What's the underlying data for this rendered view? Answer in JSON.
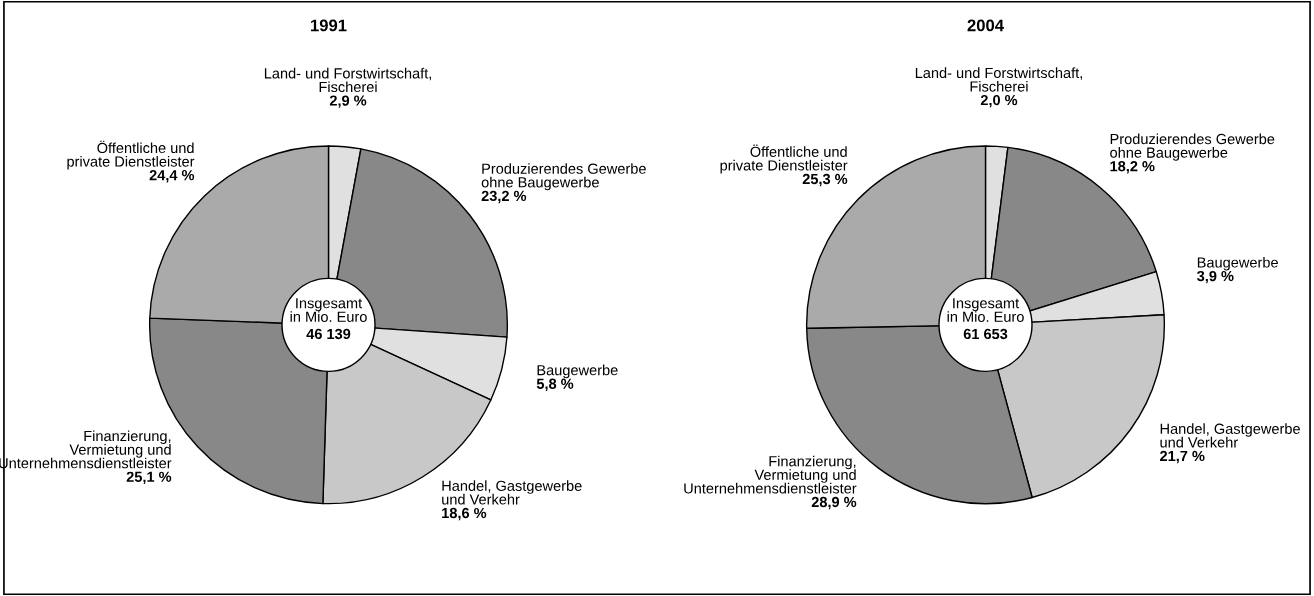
{
  "chart_data": [
    {
      "type": "donut",
      "title": "1991",
      "categories": [
        "Land- und Forstwirtschaft,\nFischerei",
        "Produzierendes Gewerbe\nohne Baugewerbe",
        "Baugewerbe",
        "Handel, Gastgewerbe\nund Verkehr",
        "Finanzierung,\nVermietung und\nUnternehmensdienstleister",
        "Öffentliche und\nprivate Dienstleister"
      ],
      "values": [
        2.9,
        23.2,
        5.8,
        18.6,
        25.1,
        24.4
      ],
      "value_labels": [
        "2,9 %",
        "23,2 %",
        "5,8 %",
        "18,6 %",
        "25,1 %",
        "24,4 %"
      ],
      "colors": [
        "#e0e0e0",
        "#888888",
        "#e0e0e0",
        "#c8c8c8",
        "#888888",
        "#aaaaaa"
      ],
      "annotations": [
        "Insgesamt\nin Mio. Euro",
        "46 139"
      ]
    },
    {
      "type": "donut",
      "title": "2004",
      "categories": [
        "Land- und Forstwirtschaft,\nFischerei",
        "Produzierendes Gewerbe\nohne Baugewerbe",
        "Baugewerbe",
        "Handel, Gastgewerbe\nund Verkehr",
        "Finanzierung,\nVermietung und\nUnternehmensdienstleister",
        "Öffentliche und\nprivate Dienstleister"
      ],
      "values": [
        2.0,
        18.2,
        3.9,
        21.7,
        28.9,
        25.3
      ],
      "value_labels": [
        "2,0 %",
        "18,2 %",
        "3,9 %",
        "21,7 %",
        "28,9 %",
        "25,3 %"
      ],
      "colors": [
        "#e0e0e0",
        "#888888",
        "#e0e0e0",
        "#c8c8c8",
        "#888888",
        "#aaaaaa"
      ],
      "annotations": [
        "Insgesamt\nin Mio. Euro",
        "61 653"
      ]
    }
  ]
}
